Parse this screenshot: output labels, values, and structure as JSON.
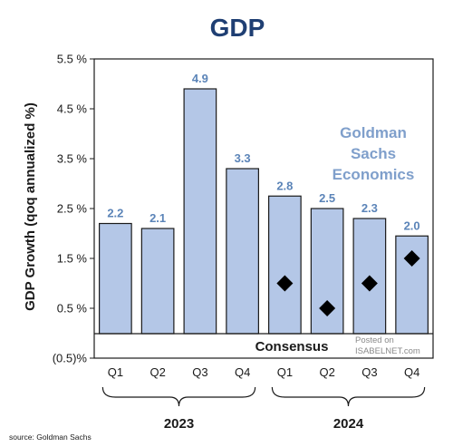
{
  "chart_data": {
    "type": "bar",
    "title": "GDP",
    "ylabel": "GDP Growth (qoq annualized %)",
    "ylim": [
      -0.5,
      5.5
    ],
    "yticks": [
      {
        "value": 5.5,
        "label": "5.5 %"
      },
      {
        "value": 4.5,
        "label": "4.5 %"
      },
      {
        "value": 3.5,
        "label": "3.5 %"
      },
      {
        "value": 2.5,
        "label": "2.5 %"
      },
      {
        "value": 1.5,
        "label": "1.5 %"
      },
      {
        "value": 0.5,
        "label": "0.5 %"
      },
      {
        "value": -0.5,
        "label": "(0.5)%"
      }
    ],
    "categories": [
      "Q1",
      "Q2",
      "Q3",
      "Q4",
      "Q1",
      "Q2",
      "Q3",
      "Q4"
    ],
    "groups": [
      {
        "label": "2023",
        "start": 0,
        "end": 3
      },
      {
        "label": "2024",
        "start": 4,
        "end": 7
      }
    ],
    "values": [
      2.2,
      2.1,
      4.9,
      3.3,
      2.75,
      2.5,
      2.3,
      1.95
    ],
    "value_labels": [
      "2.2",
      "2.1",
      "4.9",
      "3.3",
      "2.8",
      "2.5",
      "2.3",
      "2.0"
    ],
    "consensus": [
      null,
      null,
      null,
      null,
      1.0,
      0.5,
      1.0,
      1.5
    ],
    "consensus_label": "Consensus",
    "annotation": "Goldman Sachs Economics",
    "annotation_lines": [
      "Goldman",
      "Sachs",
      "Economics"
    ],
    "grid": false,
    "colors": {
      "bar": "#b4c7e7",
      "bar_edge": "#1a1a1a",
      "value_label": "#5b84b8",
      "annotation": "#7f9fcb",
      "title": "#1f3f73",
      "marker": "#000000"
    }
  },
  "watermark": {
    "line1": "Posted on",
    "line2": "ISABELNET.com"
  },
  "source": "source: Goldman Sachs"
}
